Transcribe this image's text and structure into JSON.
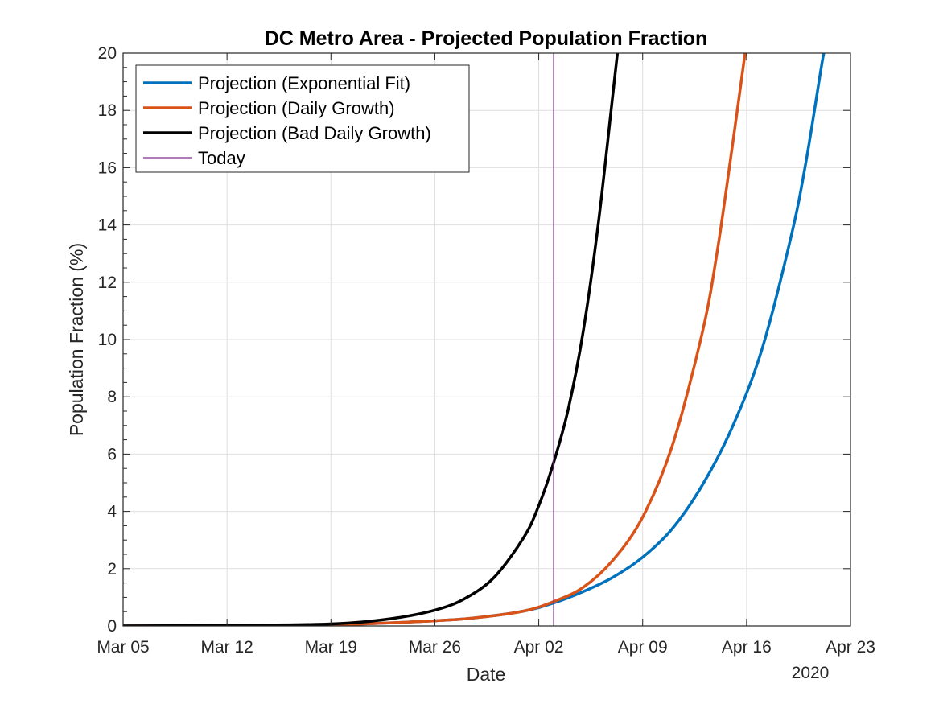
{
  "chart_data": {
    "type": "line",
    "title": "DC Metro Area - Projected Population Fraction",
    "xlabel": "Date",
    "ylabel": "Population Fraction (%)",
    "x_axis_year_label": "2020",
    "xlim": [
      "2020-03-05",
      "2020-04-23"
    ],
    "ylim": [
      0,
      20
    ],
    "x_ticks": [
      {
        "date": "2020-03-05",
        "label": "Mar 05"
      },
      {
        "date": "2020-03-12",
        "label": "Mar 12"
      },
      {
        "date": "2020-03-19",
        "label": "Mar 19"
      },
      {
        "date": "2020-03-26",
        "label": "Mar 26"
      },
      {
        "date": "2020-04-02",
        "label": "Apr 02"
      },
      {
        "date": "2020-04-09",
        "label": "Apr 09"
      },
      {
        "date": "2020-04-16",
        "label": "Apr 16"
      },
      {
        "date": "2020-04-23",
        "label": "Apr 23"
      }
    ],
    "y_ticks": [
      0,
      2,
      4,
      6,
      8,
      10,
      12,
      14,
      16,
      18,
      20
    ],
    "grid": true,
    "legend_position": "top-left",
    "series": [
      {
        "name": "Projection (Exponential Fit)",
        "color": "#0072BD",
        "points": [
          [
            "2020-03-05",
            0.0
          ],
          [
            "2020-03-12",
            0.01
          ],
          [
            "2020-03-19",
            0.04
          ],
          [
            "2020-03-26",
            0.18
          ],
          [
            "2020-03-29",
            0.3
          ],
          [
            "2020-04-01",
            0.52
          ],
          [
            "2020-04-03",
            0.8
          ],
          [
            "2020-04-05",
            1.2
          ],
          [
            "2020-04-07",
            1.7
          ],
          [
            "2020-04-09",
            2.4
          ],
          [
            "2020-04-11",
            3.4
          ],
          [
            "2020-04-13",
            4.9
          ],
          [
            "2020-04-15",
            6.9
          ],
          [
            "2020-04-17",
            9.6
          ],
          [
            "2020-04-19",
            13.6
          ],
          [
            "2020-04-20",
            16.2
          ],
          [
            "2020-04-21",
            19.4
          ],
          [
            "2020-04-21.2",
            20.0
          ]
        ]
      },
      {
        "name": "Projection (Daily Growth)",
        "color": "#D95319",
        "points": [
          [
            "2020-03-05",
            0.0
          ],
          [
            "2020-03-12",
            0.01
          ],
          [
            "2020-03-19",
            0.04
          ],
          [
            "2020-03-26",
            0.18
          ],
          [
            "2020-03-29",
            0.3
          ],
          [
            "2020-04-01",
            0.52
          ],
          [
            "2020-04-03",
            0.85
          ],
          [
            "2020-04-05",
            1.35
          ],
          [
            "2020-04-07",
            2.3
          ],
          [
            "2020-04-09",
            3.8
          ],
          [
            "2020-04-11",
            6.3
          ],
          [
            "2020-04-13",
            10.2
          ],
          [
            "2020-04-14",
            13.0
          ],
          [
            "2020-04-15",
            16.6
          ],
          [
            "2020-04-15.9",
            20.0
          ]
        ]
      },
      {
        "name": "Projection (Bad Daily Growth)",
        "color": "#000000",
        "points": [
          [
            "2020-03-05",
            0.0
          ],
          [
            "2020-03-12",
            0.02
          ],
          [
            "2020-03-19",
            0.07
          ],
          [
            "2020-03-23",
            0.25
          ],
          [
            "2020-03-26",
            0.55
          ],
          [
            "2020-03-28",
            0.95
          ],
          [
            "2020-03-30",
            1.7
          ],
          [
            "2020-04-01",
            3.1
          ],
          [
            "2020-04-02",
            4.2
          ],
          [
            "2020-04-03",
            5.7
          ],
          [
            "2020-04-04",
            7.6
          ],
          [
            "2020-04-05",
            10.3
          ],
          [
            "2020-04-06",
            14.0
          ],
          [
            "2020-04-07",
            18.6
          ],
          [
            "2020-04-07.3",
            20.0
          ]
        ]
      }
    ],
    "today_line": {
      "name": "Today",
      "date": "2020-04-03",
      "color": "#7E2F8E"
    }
  }
}
